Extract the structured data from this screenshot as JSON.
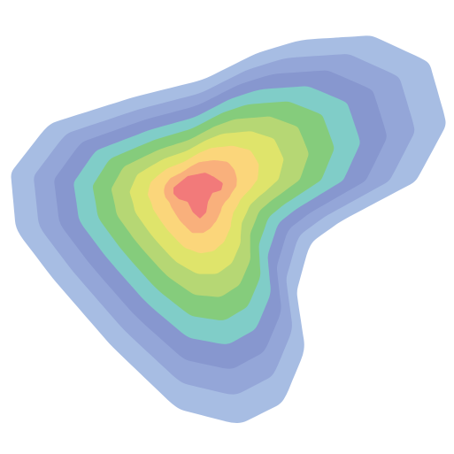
{
  "chart_data": {
    "type": "contour",
    "title": "",
    "xlabel": "",
    "ylabel": "",
    "axes_visible": false,
    "grid": false,
    "legend": "none",
    "colormap": "spectral",
    "peak": {
      "x": 0.0,
      "y": 0.0
    },
    "num_levels": 10,
    "levels": [
      {
        "level": 1,
        "color": "#a7bde3"
      },
      {
        "level": 2,
        "color": "#94a6d8"
      },
      {
        "level": 3,
        "color": "#8797cf"
      },
      {
        "level": 4,
        "color": "#80cdc8"
      },
      {
        "level": 5,
        "color": "#85cc7c"
      },
      {
        "level": 6,
        "color": "#b6d774"
      },
      {
        "level": 7,
        "color": "#dfe46b"
      },
      {
        "level": 8,
        "color": "#fbd67b"
      },
      {
        "level": 9,
        "color": "#f9b07c"
      },
      {
        "level": 10,
        "color": "#f27a7a"
      }
    ]
  }
}
